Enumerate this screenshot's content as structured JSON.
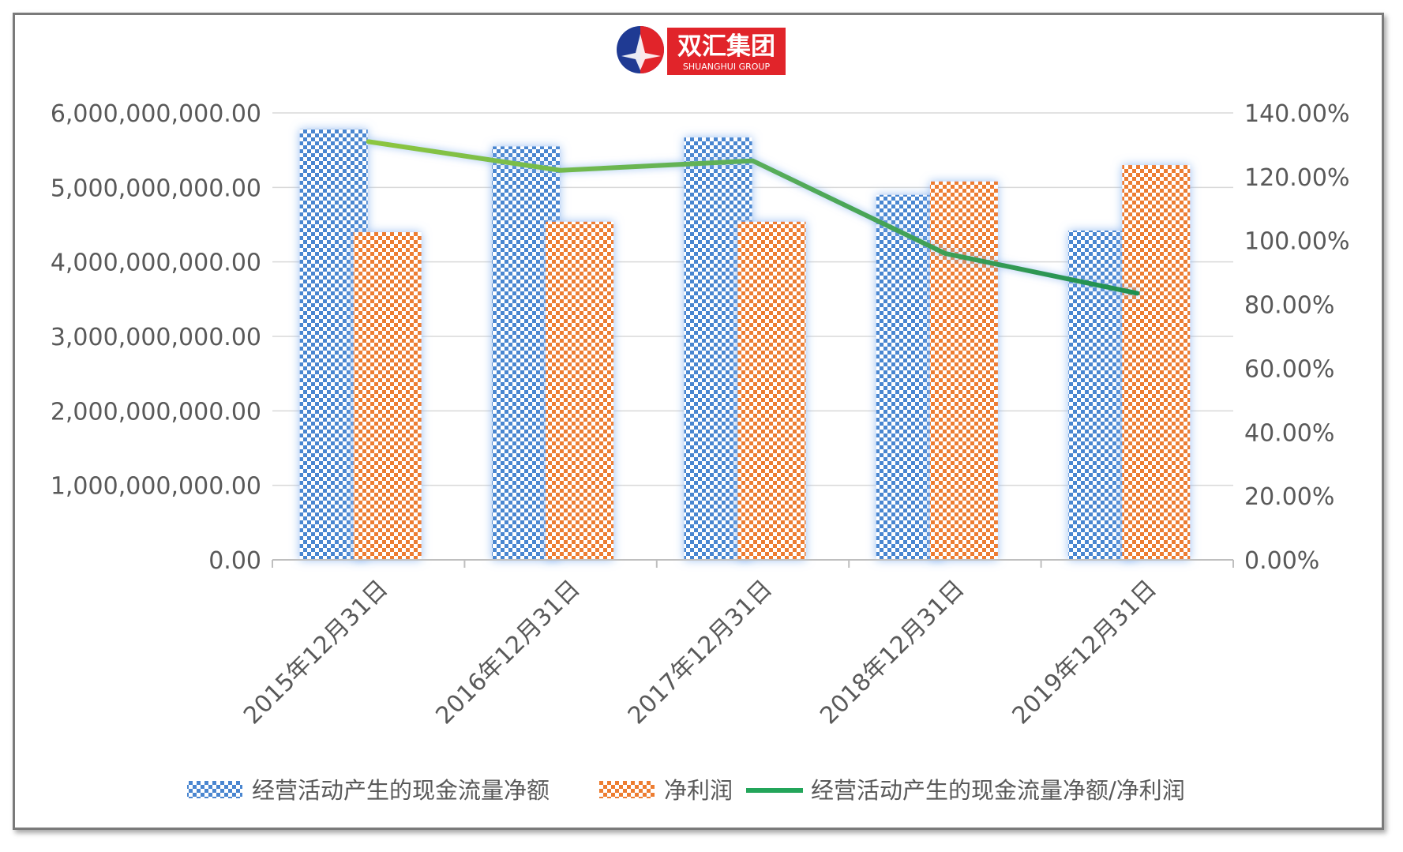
{
  "logo": {
    "name_cn": "双汇集团",
    "name_en": "SHUANGHUI GROUP",
    "color_red": "#e1242a",
    "color_blue": "#1f3a93"
  },
  "chart_data": {
    "type": "bar",
    "categories": [
      "2015年12月31日",
      "2016年12月31日",
      "2017年12月31日",
      "2018年12月31日",
      "2019年12月31日"
    ],
    "series": [
      {
        "name": "经营活动产生的现金流量净额",
        "type": "bar",
        "axis": "left",
        "color": "#4a86d0",
        "pattern": "checker",
        "values": [
          5780000000,
          5550000000,
          5670000000,
          4900000000,
          4420000000
        ]
      },
      {
        "name": "净利润",
        "type": "bar",
        "axis": "left",
        "color": "#ed7d31",
        "pattern": "checker",
        "values": [
          4400000000,
          4540000000,
          4540000000,
          5080000000,
          5300000000
        ]
      },
      {
        "name": "经营活动产生的现金流量净额/净利润",
        "type": "line",
        "axis": "right",
        "color": "#23a55a",
        "values": [
          1.31,
          1.22,
          1.25,
          0.96,
          0.835
        ]
      }
    ],
    "y_left": {
      "min": 0,
      "max": 6000000000,
      "ticks": [
        0,
        1000000000,
        2000000000,
        3000000000,
        4000000000,
        5000000000,
        6000000000
      ],
      "tick_labels": [
        "0.00",
        "1,000,000,000.00",
        "2,000,000,000.00",
        "3,000,000,000.00",
        "4,000,000,000.00",
        "5,000,000,000.00",
        "6,000,000,000.00"
      ]
    },
    "y_right": {
      "min": 0,
      "max": 1.4,
      "ticks": [
        0,
        0.2,
        0.4,
        0.6,
        0.8,
        1.0,
        1.2,
        1.4
      ],
      "tick_labels": [
        "0.00%",
        "20.00%",
        "40.00%",
        "60.00%",
        "80.00%",
        "100.00%",
        "120.00%",
        "140.00%"
      ]
    },
    "grid": true,
    "legend_position": "bottom"
  }
}
